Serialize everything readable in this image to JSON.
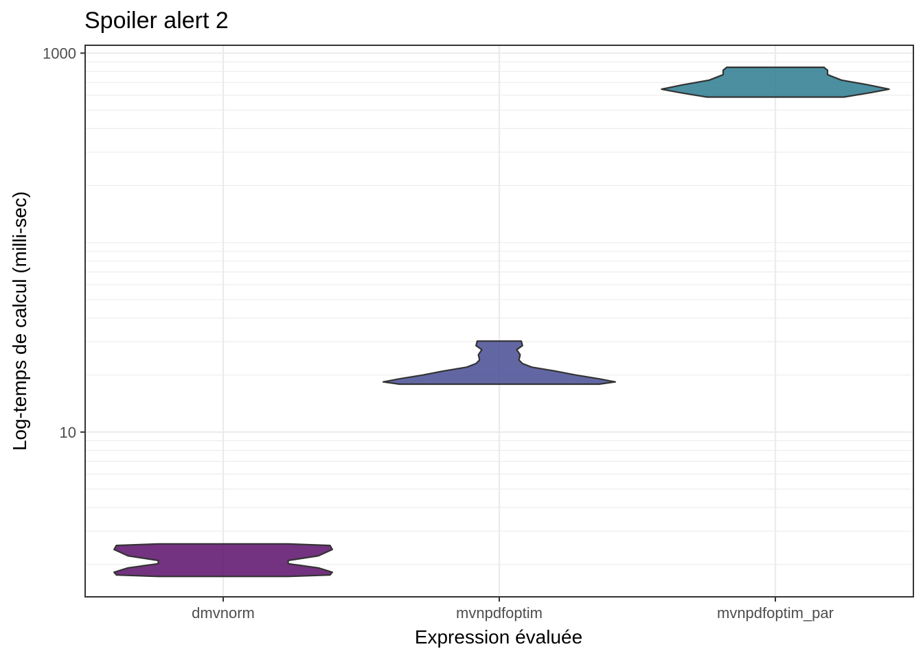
{
  "chart_data": {
    "type": "violin",
    "title": "Spoiler alert 2",
    "xlabel": "Expression évaluée",
    "ylabel": "Log-temps de calcul (milli-sec)",
    "y_scale": "log10",
    "ylim": [
      1.35,
      1100
    ],
    "y_ticks": [
      10,
      1000
    ],
    "y_tick_labels": [
      "10",
      "1000"
    ],
    "grid": true,
    "categories": [
      "dmvnorm",
      "mvnpdfoptim",
      "mvnpdfoptim_par"
    ],
    "series": [
      {
        "category": "dmvnorm",
        "color": "#5a0f6a",
        "min": 1.73,
        "max": 2.57,
        "density": [
          [
            1.73,
            0.56
          ],
          [
            1.76,
            0.92
          ],
          [
            1.82,
            0.94
          ],
          [
            1.92,
            0.82
          ],
          [
            2.02,
            0.56
          ],
          [
            2.1,
            0.56
          ],
          [
            2.22,
            0.82
          ],
          [
            2.4,
            0.94
          ],
          [
            2.52,
            0.92
          ],
          [
            2.57,
            0.56
          ]
        ]
      },
      {
        "category": "mvnpdfoptim",
        "color": "#474c94",
        "min": 17.9,
        "max": 30.2,
        "density": [
          [
            17.9,
            0.86
          ],
          [
            18.4,
            1.0
          ],
          [
            19.1,
            0.86
          ],
          [
            20.0,
            0.66
          ],
          [
            21.0,
            0.48
          ],
          [
            22.0,
            0.28
          ],
          [
            23.0,
            0.2
          ],
          [
            24.0,
            0.17
          ],
          [
            25.6,
            0.18
          ],
          [
            27.2,
            0.15
          ],
          [
            28.6,
            0.2
          ],
          [
            30.2,
            0.19
          ]
        ]
      },
      {
        "category": "mvnpdfoptim_par",
        "color": "#2b7b90",
        "min": 586,
        "max": 842,
        "density": [
          [
            586,
            0.59
          ],
          [
            620,
            0.83
          ],
          [
            645,
            0.98
          ],
          [
            680,
            0.8
          ],
          [
            720,
            0.57
          ],
          [
            770,
            0.45
          ],
          [
            812,
            0.45
          ],
          [
            830,
            0.43
          ],
          [
            842,
            0.42
          ]
        ]
      }
    ]
  }
}
